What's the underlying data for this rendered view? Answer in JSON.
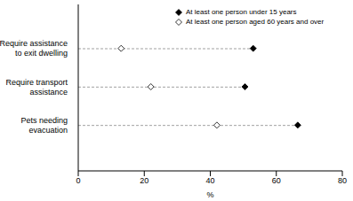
{
  "chart_data": {
    "type": "dot",
    "orientation": "horizontal",
    "x_label": "%",
    "categories": [
      "Require assistance to exit dwelling",
      "Require transport assistance",
      "Pets needing evacuation"
    ],
    "series": [
      {
        "name": "At least one person under 15 years",
        "color": "#000000",
        "marker": "diamond",
        "values": [
          53,
          50.5,
          66.5
        ]
      },
      {
        "name": "At least one person aged 60 years and over",
        "color": "#000000",
        "marker": "open_diamond",
        "values": [
          13,
          22,
          42
        ]
      }
    ],
    "xlim": [
      0,
      80
    ],
    "xticks": [
      0,
      20,
      40,
      60,
      80
    ],
    "grid": false,
    "legend": "top-right"
  }
}
